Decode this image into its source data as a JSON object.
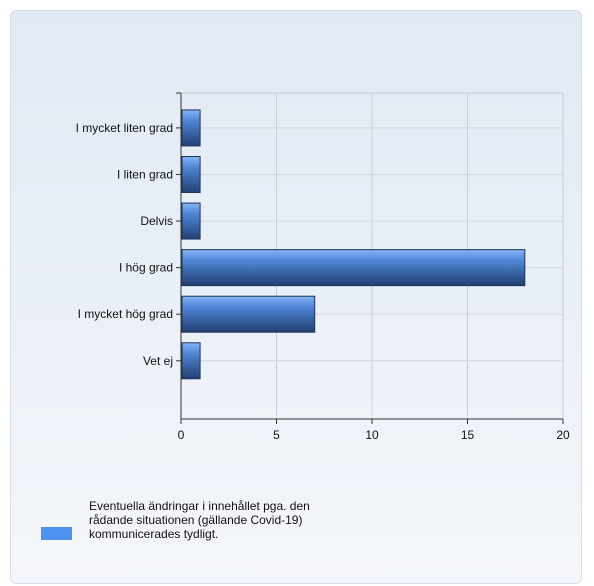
{
  "chart_data": {
    "type": "bar",
    "orientation": "horizontal",
    "categories": [
      "I mycket liten grad",
      "I liten grad",
      "Delvis",
      "I hög grad",
      "I mycket hög grad",
      "Vet ej"
    ],
    "series": [
      {
        "name": "Eventuella ändringar i innehållet pga. den rådande situationen (gällande Covid-19) kommunicerades tydligt.",
        "values": [
          1,
          1,
          1,
          18,
          7,
          1
        ]
      }
    ],
    "xlim": [
      0,
      20
    ],
    "x_ticks": [
      "0",
      "5",
      "10",
      "15",
      "20"
    ],
    "grid": true,
    "legend_position": "bottom-left",
    "bar_color": "#4b93ef"
  },
  "legend": {
    "label": "Eventuella ändringar i innehållet pga. den rådande situationen (gällande Covid-19) kommunicerades tydligt."
  }
}
